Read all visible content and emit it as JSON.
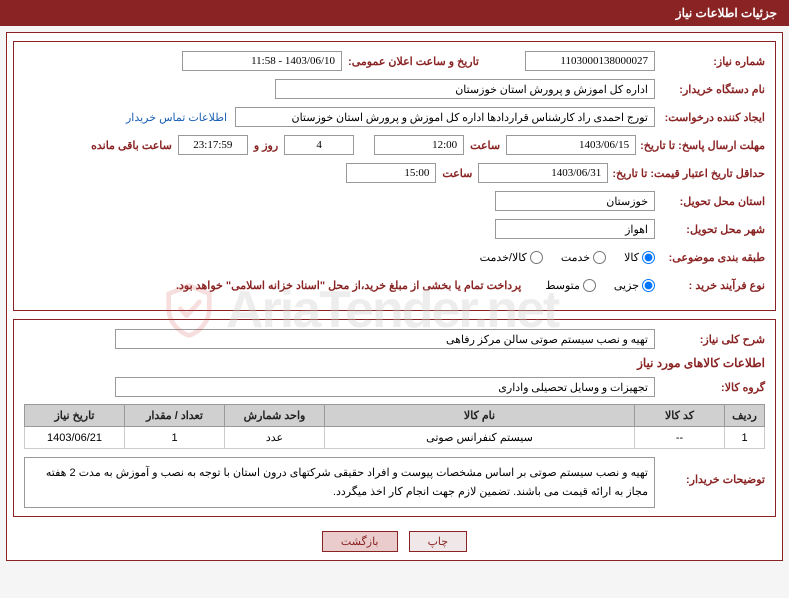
{
  "header": {
    "title": "جزئیات اطلاعات نیاز"
  },
  "fields": {
    "need_no_label": "شماره نیاز:",
    "need_no": "1103000138000027",
    "announce_label": "تاریخ و ساعت اعلان عمومی:",
    "announce_value": "1403/06/10 - 11:58",
    "buyer_label": "نام دستگاه خریدار:",
    "buyer_value": "اداره کل اموزش و پرورش استان خوزستان",
    "requester_label": "ایجاد کننده درخواست:",
    "requester_value": "تورج احمدی راد کارشناس قراردادها اداره کل اموزش و پرورش استان خوزستان",
    "contact_link": "اطلاعات تماس خریدار",
    "deadline_label": "مهلت ارسال پاسخ: تا تاریخ:",
    "deadline_date": "1403/06/15",
    "time_word": "ساعت",
    "deadline_time": "12:00",
    "days_remaining": "4",
    "day_and_word": "روز و",
    "countdown": "23:17:59",
    "remaining_word": "ساعت باقی مانده",
    "validity_label": "حداقل تاریخ اعتبار قیمت: تا تاریخ:",
    "validity_date": "1403/06/31",
    "validity_time": "15:00",
    "province_label": "استان محل تحویل:",
    "province_value": "خوزستان",
    "city_label": "شهر محل تحویل:",
    "city_value": "اهواز",
    "category_label": "طبقه بندی موضوعی:",
    "cat_goods": "کالا",
    "cat_service": "خدمت",
    "cat_both": "کالا/خدمت",
    "process_label": "نوع فرآیند خرید :",
    "proc_partial": "جزیی",
    "proc_medium": "متوسط",
    "payment_note": "پرداخت تمام یا بخشی از مبلغ خرید،از محل \"اسناد خزانه اسلامی\" خواهد بود.",
    "summary_label": "شرح کلی نیاز:",
    "summary_value": "تهیه و نصب سیستم صوتی سالن مرکز رفاهی",
    "items_title": "اطلاعات کالاهای مورد نیاز",
    "group_label": "گروه کالا:",
    "group_value": "تجهیزات و وسایل تحصیلی واداری",
    "buyer_desc_label": "توضیحات خریدار:",
    "buyer_desc_value": "تهیه و نصب سیستم صوتی بر اساس مشخصات پیوست  و افراد حقیقی شرکتهای درون استان با توجه به نصب و آموزش به مدت 2 هفته مجاز به ارائه قیمت می باشند. تضمین لازم جهت انجام کار اخذ میگردد."
  },
  "table": {
    "headers": {
      "row": "ردیف",
      "code": "کد کالا",
      "name": "نام کالا",
      "unit": "واحد شمارش",
      "qty": "تعداد / مقدار",
      "date": "تاریخ نیاز"
    },
    "rows": [
      {
        "row": "1",
        "code": "--",
        "name": "سیستم کنفرانس صوتی",
        "unit": "عدد",
        "qty": "1",
        "date": "1403/06/21"
      }
    ]
  },
  "buttons": {
    "print": "چاپ",
    "back": "بازگشت"
  },
  "watermark": "AriaTender.net"
}
